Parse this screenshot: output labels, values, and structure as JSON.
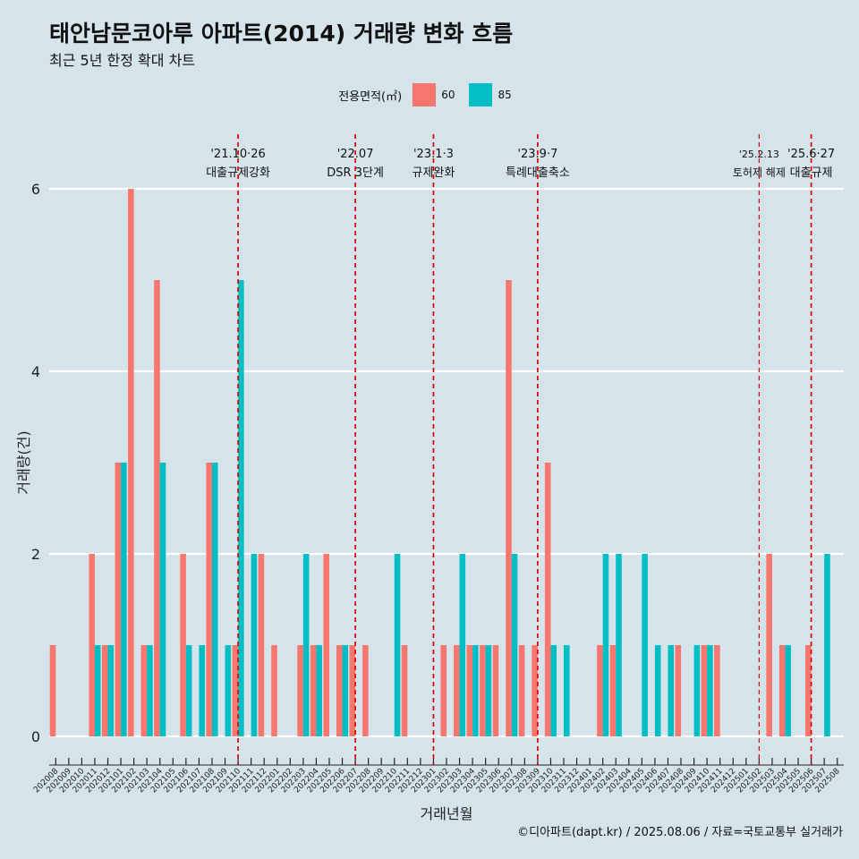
{
  "title": "태안남문코아루 아파트(2014) 거래량 변화 흐름",
  "subtitle": "최근 5년 한정 확대 차트",
  "caption": "©디아파트(dapt.kr) / 2025.08.06 / 자료=국토교통부 실거래가",
  "legend": {
    "title": "전용면적(㎡)",
    "items": [
      {
        "label": "60",
        "color": "#f8766d"
      },
      {
        "label": "85",
        "color": "#00bfc4"
      }
    ]
  },
  "chart_data": {
    "type": "bar",
    "xlabel": "거래년월",
    "ylabel": "거래량(건)",
    "ylim": [
      0,
      6
    ],
    "yticks": [
      0,
      2,
      4,
      6
    ],
    "categories": [
      "202008",
      "202009",
      "202010",
      "202011",
      "202012",
      "202101",
      "202102",
      "202103",
      "202104",
      "202105",
      "202106",
      "202107",
      "202108",
      "202109",
      "202110",
      "202111",
      "202112",
      "202201",
      "202202",
      "202203",
      "202204",
      "202205",
      "202206",
      "202207",
      "202208",
      "202209",
      "202210",
      "202211",
      "202212",
      "202301",
      "202302",
      "202303",
      "202304",
      "202305",
      "202306",
      "202307",
      "202308",
      "202309",
      "202310",
      "202311",
      "202312",
      "202401",
      "202402",
      "202403",
      "202404",
      "202405",
      "202406",
      "202407",
      "202408",
      "202409",
      "202410",
      "202411",
      "202412",
      "202501",
      "202502",
      "202503",
      "202504",
      "202505",
      "202506",
      "202507",
      "202508"
    ],
    "series": [
      {
        "name": "60",
        "color": "#f8766d",
        "values": [
          1,
          0,
          0,
          2,
          1,
          3,
          6,
          1,
          5,
          0,
          2,
          0,
          3,
          0,
          1,
          0,
          2,
          1,
          0,
          1,
          1,
          2,
          1,
          1,
          1,
          0,
          0,
          1,
          0,
          0,
          1,
          1,
          1,
          1,
          1,
          5,
          1,
          1,
          3,
          0,
          0,
          0,
          1,
          1,
          0,
          0,
          0,
          0,
          1,
          0,
          1,
          1,
          0,
          0,
          0,
          2,
          1,
          0,
          1,
          0,
          0
        ]
      },
      {
        "name": "85",
        "color": "#00bfc4",
        "values": [
          0,
          0,
          0,
          1,
          1,
          3,
          0,
          1,
          3,
          0,
          1,
          1,
          3,
          1,
          5,
          2,
          0,
          0,
          0,
          2,
          1,
          0,
          1,
          0,
          0,
          0,
          2,
          0,
          0,
          0,
          0,
          2,
          1,
          1,
          0,
          2,
          0,
          0,
          1,
          1,
          0,
          0,
          2,
          2,
          0,
          2,
          1,
          1,
          0,
          1,
          1,
          0,
          0,
          0,
          0,
          0,
          1,
          0,
          0,
          2,
          0
        ]
      }
    ],
    "events": [
      {
        "date": "202110",
        "label1": "'21.10·26",
        "label2": "대출규제강화"
      },
      {
        "date": "202207",
        "label1": "'22.07",
        "label2": "DSR 3단계"
      },
      {
        "date": "202301",
        "label1": "'23.1·3",
        "label2": "규제완화"
      },
      {
        "date": "202309",
        "label1": "'23.9·7",
        "label2": "특례대출축소"
      },
      {
        "date": "202502",
        "label1": "'25.2.13",
        "label2": "토허제 해제"
      },
      {
        "date": "202506",
        "label1": "'25.6·27",
        "label2": "대출규제"
      }
    ]
  }
}
